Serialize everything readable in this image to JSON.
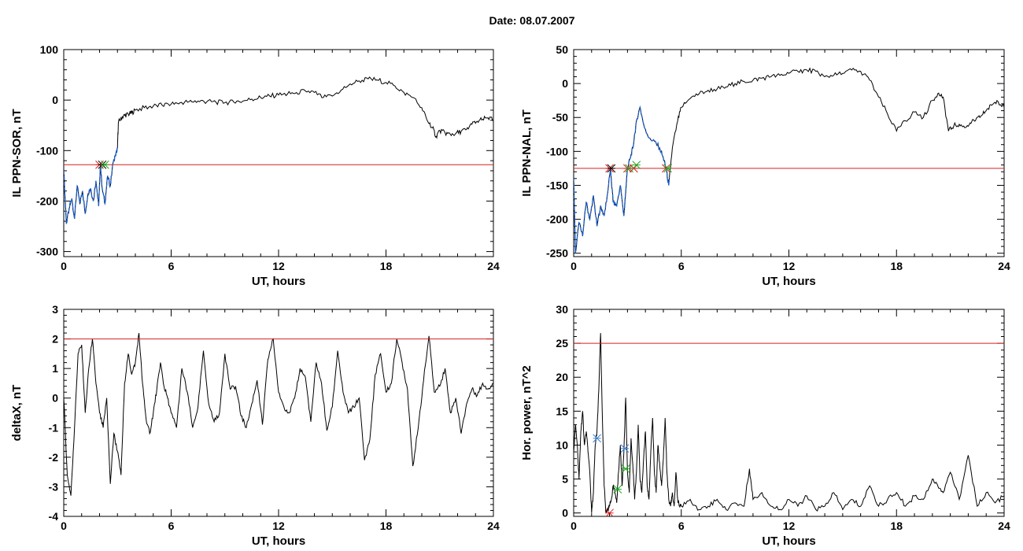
{
  "page": {
    "title": "Date:  08.07.2007"
  },
  "colors": {
    "background": "#ffffff",
    "axes": "#000000",
    "series": "#000000",
    "highlight": "#1560d8",
    "threshold": "#d62020",
    "marker_red": "#d62020",
    "marker_green": "#22aa22",
    "marker_blue": "#3a7fd5",
    "marker_black": "#000000"
  },
  "chart_data": [
    {
      "type": "line",
      "xlabel": "UT, hours",
      "ylabel": "IL PPN-SOR, nT",
      "xlim": [
        0,
        24
      ],
      "ylim": [
        -310,
        100
      ],
      "xticks": [
        0,
        6,
        12,
        18,
        24
      ],
      "yticks": [
        -300,
        -200,
        -100,
        0,
        100
      ],
      "grid": false,
      "threshold": -128,
      "series": [
        {
          "x": [
            0,
            0.15,
            0.3,
            0.45,
            0.6,
            0.75,
            0.9,
            1.05,
            1.2,
            1.35,
            1.5,
            1.65,
            1.8,
            1.95,
            2.05,
            2.15,
            2.3,
            2.45,
            2.6,
            2.75,
            2.9,
            3.0,
            3.05,
            3.2,
            3.4,
            3.6,
            3.8,
            4.0,
            4.5,
            5.0,
            5.5,
            6.0,
            6.5,
            7.0,
            7.5,
            8.0,
            8.5,
            9.0,
            9.5,
            10.0,
            10.5,
            11.0,
            11.5,
            12.0,
            12.5,
            13.0,
            13.5,
            14.0,
            14.5,
            15.0,
            15.5,
            16.0,
            16.5,
            17.0,
            17.5,
            18.0,
            18.5,
            19.0,
            19.5,
            20.0,
            20.3,
            20.6,
            20.8,
            21.0,
            21.3,
            21.6,
            21.9,
            22.2,
            22.5,
            22.8,
            23.1,
            23.4,
            23.7,
            24.0
          ],
          "y": [
            -140,
            -245,
            -215,
            -195,
            -235,
            -170,
            -205,
            -180,
            -225,
            -185,
            -175,
            -200,
            -160,
            -210,
            -130,
            -175,
            -205,
            -150,
            -170,
            -125,
            -110,
            -95,
            -45,
            -35,
            -30,
            -28,
            -25,
            -20,
            -15,
            -12,
            -10,
            -8,
            -5,
            -3,
            -2,
            -3,
            -4,
            -5,
            -4,
            -2,
            2,
            5,
            8,
            10,
            12,
            15,
            18,
            15,
            5,
            8,
            20,
            32,
            38,
            42,
            40,
            35,
            28,
            15,
            5,
            -15,
            -40,
            -55,
            -72,
            -60,
            -65,
            -68,
            -66,
            -62,
            -58,
            -48,
            -42,
            -38,
            -35,
            -40
          ]
        }
      ],
      "highlight_range": [
        0,
        3.0
      ],
      "markers": [
        {
          "x": 2.0,
          "y": -128,
          "color": "red"
        },
        {
          "x": 2.15,
          "y": -128,
          "color": "black"
        },
        {
          "x": 2.3,
          "y": -128,
          "color": "green"
        }
      ]
    },
    {
      "type": "line",
      "xlabel": "UT, hours",
      "ylabel": "IL PPN-NAL, nT",
      "xlim": [
        0,
        24
      ],
      "ylim": [
        -255,
        50
      ],
      "xticks": [
        0,
        6,
        12,
        18,
        24
      ],
      "yticks": [
        -250,
        -200,
        -150,
        -100,
        -50,
        0,
        50
      ],
      "grid": false,
      "threshold": -125,
      "series": [
        {
          "x": [
            0,
            0.1,
            0.3,
            0.5,
            0.7,
            0.9,
            1.1,
            1.3,
            1.5,
            1.7,
            1.9,
            2.05,
            2.2,
            2.4,
            2.6,
            2.8,
            3.0,
            3.15,
            3.3,
            3.5,
            3.7,
            3.9,
            4.2,
            4.5,
            4.8,
            5.0,
            5.15,
            5.3,
            5.5,
            5.8,
            6.0,
            6.5,
            7.0,
            7.5,
            8.0,
            8.5,
            9.0,
            9.5,
            10.0,
            10.5,
            11.0,
            11.5,
            12.0,
            12.5,
            13.0,
            13.5,
            14.0,
            14.5,
            15.0,
            15.5,
            16.0,
            16.5,
            17.0,
            17.5,
            18.0,
            18.5,
            19.0,
            19.5,
            20.0,
            20.3,
            20.6,
            20.9,
            21.2,
            21.5,
            21.8,
            22.1,
            22.4,
            22.7,
            23.0,
            23.3,
            23.6,
            24.0
          ],
          "y": [
            -140,
            -250,
            -205,
            -225,
            -175,
            -200,
            -165,
            -210,
            -180,
            -195,
            -160,
            -125,
            -175,
            -180,
            -150,
            -195,
            -125,
            -110,
            -95,
            -55,
            -35,
            -60,
            -80,
            -85,
            -95,
            -110,
            -125,
            -150,
            -95,
            -55,
            -35,
            -22,
            -15,
            -10,
            -8,
            -5,
            0,
            3,
            5,
            8,
            10,
            12,
            15,
            18,
            20,
            18,
            10,
            12,
            15,
            20,
            18,
            5,
            -20,
            -45,
            -70,
            -55,
            -42,
            -50,
            -25,
            -15,
            -20,
            -70,
            -62,
            -60,
            -65,
            -58,
            -55,
            -48,
            -40,
            -32,
            -25,
            -35
          ]
        }
      ],
      "highlight_range": [
        0,
        5.35
      ],
      "markers": [
        {
          "x": 2.0,
          "y": -125,
          "color": "red"
        },
        {
          "x": 2.1,
          "y": -125,
          "color": "black"
        },
        {
          "x": 3.0,
          "y": -125,
          "color": "red"
        },
        {
          "x": 3.1,
          "y": -125,
          "color": "green"
        },
        {
          "x": 3.35,
          "y": -125,
          "color": "red"
        },
        {
          "x": 3.5,
          "y": -120,
          "color": "green"
        },
        {
          "x": 5.15,
          "y": -125,
          "color": "red"
        },
        {
          "x": 5.25,
          "y": -125,
          "color": "green"
        }
      ]
    },
    {
      "type": "line",
      "xlabel": "UT, hours",
      "ylabel": "deltaX, nT",
      "xlim": [
        0,
        24
      ],
      "ylim": [
        -4,
        3
      ],
      "xticks": [
        0,
        6,
        12,
        18,
        24
      ],
      "yticks": [
        -4,
        -3,
        -2,
        -1,
        0,
        1,
        2,
        3
      ],
      "grid": false,
      "threshold": 2.0,
      "series": [
        {
          "x": [
            0,
            0.2,
            0.4,
            0.6,
            0.8,
            1.0,
            1.2,
            1.4,
            1.6,
            1.8,
            2.0,
            2.2,
            2.4,
            2.6,
            2.8,
            3.0,
            3.2,
            3.4,
            3.6,
            3.8,
            4.0,
            4.2,
            4.4,
            4.6,
            4.8,
            5.0,
            5.2,
            5.4,
            5.6,
            5.8,
            6.0,
            6.3,
            6.6,
            6.9,
            7.2,
            7.5,
            7.8,
            8.1,
            8.4,
            8.7,
            9.0,
            9.3,
            9.6,
            9.9,
            10.2,
            10.5,
            10.8,
            11.1,
            11.4,
            11.7,
            12.0,
            12.3,
            12.6,
            12.9,
            13.2,
            13.5,
            13.8,
            14.1,
            14.4,
            14.7,
            15.0,
            15.3,
            15.6,
            15.9,
            16.2,
            16.5,
            16.8,
            17.1,
            17.4,
            17.7,
            18.0,
            18.3,
            18.6,
            18.9,
            19.2,
            19.5,
            19.8,
            20.1,
            20.4,
            20.7,
            21.0,
            21.3,
            21.6,
            21.9,
            22.2,
            22.5,
            22.8,
            23.1,
            23.4,
            23.7,
            24.0
          ],
          "y": [
            0.0,
            -2.6,
            -3.3,
            -1.0,
            1.5,
            1.8,
            -0.5,
            1.0,
            2.0,
            0.5,
            -0.5,
            -1.0,
            0.0,
            -2.9,
            -1.2,
            -1.8,
            -2.6,
            0.5,
            1.5,
            0.8,
            1.2,
            2.2,
            0.5,
            -0.7,
            -1.2,
            -0.5,
            0.3,
            1.2,
            0.4,
            0.0,
            -0.5,
            -1.0,
            1.0,
            0.2,
            -1.0,
            -0.3,
            1.6,
            -0.2,
            -0.8,
            -0.5,
            1.5,
            0.3,
            0.4,
            -0.6,
            -1.0,
            -0.2,
            0.6,
            -0.9,
            1.3,
            2.0,
            0.2,
            -0.3,
            -0.5,
            0.0,
            1.0,
            0.7,
            -0.8,
            1.2,
            0.5,
            -1.1,
            -0.3,
            1.6,
            0.2,
            -0.5,
            -0.3,
            0.0,
            -2.1,
            -1.4,
            0.8,
            1.5,
            0.2,
            0.5,
            2.0,
            1.2,
            0.3,
            -2.3,
            -1.0,
            0.6,
            2.1,
            0.2,
            0.4,
            1.0,
            -0.5,
            0.0,
            -1.2,
            -0.2,
            0.3,
            0.1,
            0.5,
            0.3,
            0.5
          ]
        }
      ]
    },
    {
      "type": "line",
      "xlabel": "UT, hours",
      "ylabel": "Hor. power, nT^2",
      "xlim": [
        0,
        24
      ],
      "ylim": [
        -0.5,
        30
      ],
      "xticks": [
        0,
        6,
        12,
        18,
        24
      ],
      "yticks": [
        0,
        5,
        10,
        15,
        20,
        25,
        30
      ],
      "grid": false,
      "threshold": 25,
      "series": [
        {
          "x": [
            0,
            0.1,
            0.2,
            0.3,
            0.4,
            0.5,
            0.6,
            0.7,
            0.8,
            0.9,
            1.0,
            1.1,
            1.2,
            1.3,
            1.4,
            1.5,
            1.6,
            1.7,
            1.8,
            1.9,
            2.0,
            2.1,
            2.2,
            2.3,
            2.4,
            2.5,
            2.6,
            2.7,
            2.8,
            2.9,
            3.0,
            3.1,
            3.2,
            3.3,
            3.4,
            3.5,
            3.6,
            3.7,
            3.8,
            3.9,
            4.0,
            4.1,
            4.2,
            4.3,
            4.4,
            4.5,
            4.6,
            4.7,
            4.8,
            4.9,
            5.0,
            5.1,
            5.2,
            5.3,
            5.4,
            5.5,
            5.6,
            5.7,
            5.8,
            5.9,
            6.0,
            6.5,
            7.0,
            7.5,
            8.0,
            8.5,
            9.0,
            9.5,
            9.8,
            10.0,
            10.5,
            11.0,
            11.5,
            12.0,
            12.5,
            13.0,
            13.5,
            14.0,
            14.5,
            15.0,
            15.5,
            16.0,
            16.5,
            17.0,
            17.5,
            18.0,
            18.5,
            19.0,
            19.5,
            20.0,
            20.3,
            20.6,
            21.0,
            21.5,
            22.0,
            22.5,
            23.0,
            23.5,
            24.0
          ],
          "y": [
            9,
            13,
            10,
            5,
            12,
            15,
            10,
            12,
            9,
            6,
            0,
            3,
            10,
            12,
            18,
            26.5,
            14,
            4,
            0,
            0.5,
            1,
            2,
            4,
            3,
            1.5,
            6,
            10,
            4,
            9,
            17,
            6,
            3,
            11,
            7,
            2,
            6,
            13,
            5,
            3,
            8,
            12,
            4,
            2,
            9,
            14,
            6,
            3,
            10,
            7,
            4,
            8,
            14,
            6,
            2,
            1,
            3,
            1,
            6,
            2,
            1,
            1,
            2,
            0.5,
            1,
            2,
            0.5,
            1.5,
            1,
            6.5,
            2,
            3,
            1,
            0.5,
            2,
            1,
            2.5,
            0.5,
            1,
            3,
            0.5,
            2,
            1,
            4,
            1,
            2,
            3,
            1,
            2.5,
            2,
            5,
            4,
            3,
            6,
            2,
            8.5,
            1,
            3,
            1.5,
            2.5
          ]
        }
      ],
      "markers": [
        {
          "x": 1.3,
          "y": 11,
          "color": "blue"
        },
        {
          "x": 2.0,
          "y": 0,
          "color": "red"
        },
        {
          "x": 2.45,
          "y": 3.5,
          "color": "green"
        },
        {
          "x": 2.85,
          "y": 9.5,
          "color": "blue"
        },
        {
          "x": 2.9,
          "y": 6.5,
          "color": "green"
        }
      ]
    }
  ]
}
